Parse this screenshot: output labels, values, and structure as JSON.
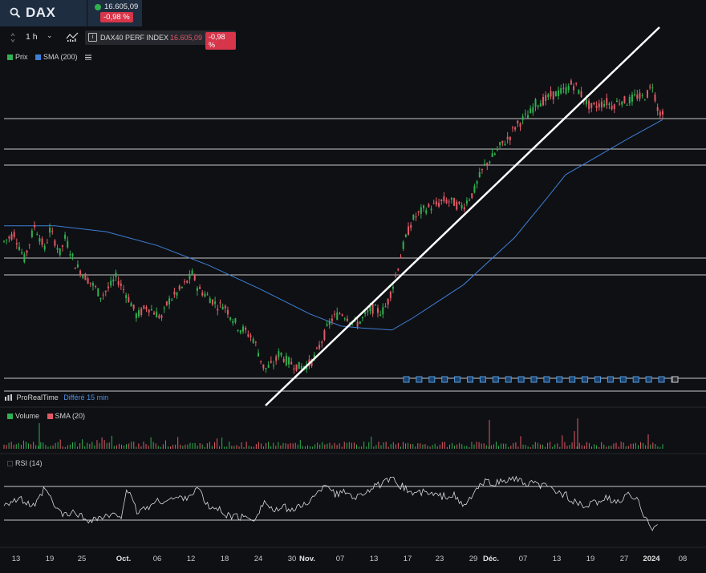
{
  "header": {
    "symbol": "DAX",
    "price": "16.605,09",
    "change": "-0,98 %"
  },
  "toolbar": {
    "interval": "1 h",
    "instrument_name": "DAX40 PERF INDEX",
    "instrument_price": "16.605,09",
    "instrument_change": "-0,98 %"
  },
  "legends": {
    "price": {
      "label": "Prix",
      "color": "#2fb14f"
    },
    "sma200": {
      "label": "SMA (200)",
      "color": "#3d7fd6"
    },
    "volume": {
      "label": "Volume",
      "color": "#2fb14f"
    },
    "sma20": {
      "label": "SMA (20)",
      "color": "#e05a66"
    },
    "rsi": {
      "label": "RSI (14)",
      "color": "#111111"
    }
  },
  "source": {
    "name": "ProRealTime",
    "delay": "Différé 15 min"
  },
  "chart_data": {
    "type": "line",
    "title": "DAX40 PERF INDEX",
    "series": [
      {
        "name": "Prix",
        "type": "candlestick",
        "color_up": "#2fb14f",
        "color_down": "#e05a66",
        "points": [
          [
            0,
            0.72
          ],
          [
            2,
            0.76
          ],
          [
            4,
            0.63
          ],
          [
            6,
            0.8
          ],
          [
            8,
            0.68
          ],
          [
            9,
            0.78
          ],
          [
            11,
            0.66
          ],
          [
            12,
            0.74
          ],
          [
            14,
            0.6
          ],
          [
            16,
            0.54
          ],
          [
            18,
            0.48
          ],
          [
            19,
            0.44
          ],
          [
            21,
            0.5
          ],
          [
            22,
            0.54
          ],
          [
            24,
            0.45
          ],
          [
            25,
            0.4
          ],
          [
            26,
            0.34
          ],
          [
            28,
            0.39
          ],
          [
            29,
            0.37
          ],
          [
            31,
            0.33
          ],
          [
            32,
            0.41
          ],
          [
            34,
            0.46
          ],
          [
            36,
            0.52
          ],
          [
            37,
            0.56
          ],
          [
            38,
            0.48
          ],
          [
            40,
            0.44
          ],
          [
            42,
            0.39
          ],
          [
            43,
            0.4
          ],
          [
            45,
            0.32
          ],
          [
            46,
            0.28
          ],
          [
            47,
            0.27
          ],
          [
            49,
            0.22
          ],
          [
            50,
            0.14
          ],
          [
            51,
            0.07
          ],
          [
            53,
            0.1
          ],
          [
            54,
            0.16
          ],
          [
            55,
            0.12
          ],
          [
            57,
            0.09
          ],
          [
            58,
            0.08
          ],
          [
            60,
            0.1
          ],
          [
            61,
            0.14
          ],
          [
            62,
            0.2
          ],
          [
            63,
            0.26
          ],
          [
            64,
            0.32
          ],
          [
            66,
            0.36
          ],
          [
            67,
            0.34
          ],
          [
            69,
            0.3
          ],
          [
            70,
            0.32
          ],
          [
            72,
            0.38
          ],
          [
            74,
            0.36
          ],
          [
            75,
            0.4
          ],
          [
            76,
            0.48
          ],
          [
            77,
            0.57
          ],
          [
            78,
            0.68
          ],
          [
            79,
            0.76
          ],
          [
            80,
            0.83
          ],
          [
            82,
            0.88
          ],
          [
            83,
            0.89
          ],
          [
            85,
            0.91
          ],
          [
            86,
            0.93
          ],
          [
            88,
            0.92
          ],
          [
            89,
            0.9
          ],
          [
            90,
            0.9
          ],
          [
            91,
            0.94
          ],
          [
            92,
            0.97
          ],
          [
            93,
            1.04
          ],
          [
            94,
            1.1
          ],
          [
            96,
            1.16
          ],
          [
            97,
            1.2
          ],
          [
            99,
            1.25
          ],
          [
            100,
            1.3
          ],
          [
            102,
            1.35
          ],
          [
            103,
            1.37
          ],
          [
            104,
            1.42
          ],
          [
            106,
            1.44
          ],
          [
            107,
            1.46
          ],
          [
            108,
            1.47
          ],
          [
            110,
            1.49
          ],
          [
            111,
            1.52
          ],
          [
            112,
            1.51
          ],
          [
            114,
            1.43
          ],
          [
            115,
            1.4
          ],
          [
            117,
            1.42
          ],
          [
            118,
            1.43
          ],
          [
            119,
            1.41
          ],
          [
            121,
            1.44
          ],
          [
            122,
            1.43
          ],
          [
            124,
            1.46
          ],
          [
            125,
            1.45
          ],
          [
            126,
            1.47
          ],
          [
            127,
            1.52
          ],
          [
            128,
            1.4
          ],
          [
            129,
            1.36
          ]
        ]
      },
      {
        "name": "SMA (200)",
        "color": "#3d7fd6",
        "points": [
          [
            0,
            0.8
          ],
          [
            10,
            0.8
          ],
          [
            20,
            0.77
          ],
          [
            30,
            0.7
          ],
          [
            40,
            0.6
          ],
          [
            50,
            0.48
          ],
          [
            60,
            0.35
          ],
          [
            66,
            0.29
          ],
          [
            70,
            0.28
          ],
          [
            76,
            0.27
          ],
          [
            80,
            0.33
          ],
          [
            90,
            0.5
          ],
          [
            100,
            0.74
          ],
          [
            106,
            0.93
          ],
          [
            110,
            1.06
          ],
          [
            116,
            1.15
          ],
          [
            122,
            1.24
          ],
          [
            129,
            1.34
          ]
        ]
      },
      {
        "name": "RSI (14)",
        "color": "#d8d8d8",
        "points": [
          [
            0,
            50
          ],
          [
            3,
            55
          ],
          [
            6,
            45
          ],
          [
            8,
            68
          ],
          [
            10,
            45
          ],
          [
            12,
            35
          ],
          [
            14,
            40
          ],
          [
            16,
            30
          ],
          [
            20,
            34
          ],
          [
            23,
            36
          ],
          [
            24,
            68
          ],
          [
            26,
            40
          ],
          [
            28,
            45
          ],
          [
            30,
            52
          ],
          [
            33,
            55
          ],
          [
            36,
            58
          ],
          [
            38,
            68
          ],
          [
            40,
            45
          ],
          [
            42,
            43
          ],
          [
            44,
            35
          ],
          [
            47,
            33
          ],
          [
            49,
            32
          ],
          [
            51,
            52
          ],
          [
            53,
            40
          ],
          [
            55,
            45
          ],
          [
            57,
            42
          ],
          [
            59,
            50
          ],
          [
            61,
            58
          ],
          [
            63,
            75
          ],
          [
            65,
            60
          ],
          [
            67,
            64
          ],
          [
            69,
            57
          ],
          [
            71,
            65
          ],
          [
            74,
            73
          ],
          [
            76,
            78
          ],
          [
            78,
            70
          ],
          [
            80,
            62
          ],
          [
            82,
            63
          ],
          [
            84,
            60
          ],
          [
            86,
            58
          ],
          [
            88,
            60
          ],
          [
            90,
            45
          ],
          [
            92,
            62
          ],
          [
            94,
            75
          ],
          [
            96,
            74
          ],
          [
            98,
            76
          ],
          [
            100,
            80
          ],
          [
            102,
            72
          ],
          [
            104,
            73
          ],
          [
            106,
            70
          ],
          [
            108,
            65
          ],
          [
            110,
            60
          ],
          [
            112,
            50
          ],
          [
            114,
            45
          ],
          [
            116,
            52
          ],
          [
            118,
            56
          ],
          [
            120,
            50
          ],
          [
            122,
            60
          ],
          [
            124,
            54
          ],
          [
            125,
            40
          ],
          [
            126,
            33
          ],
          [
            127,
            20
          ],
          [
            128,
            25
          ]
        ]
      }
    ],
    "rsi_levels": [
      30,
      70
    ],
    "x_tick_labels": [
      "13",
      "19",
      "25",
      "Oct.",
      "06",
      "12",
      "18",
      "24",
      "30",
      "Nov.",
      "07",
      "13",
      "17",
      "23",
      "29",
      "Déc.",
      "07",
      "13",
      "19",
      "27",
      "2024",
      "08"
    ]
  }
}
